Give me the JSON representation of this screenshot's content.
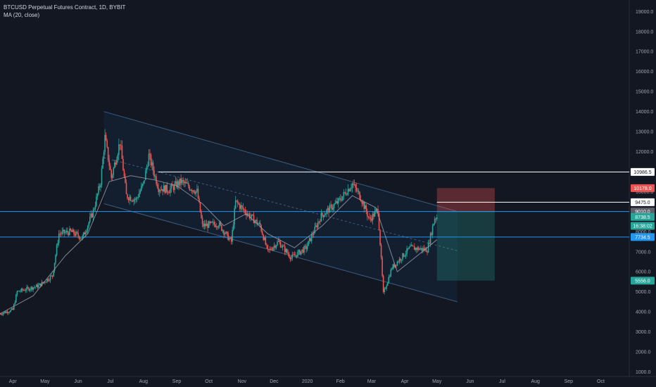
{
  "legend": {
    "symbol_line": "BTCUSD Perpetual Futures Contract, 1D, BYBIT",
    "indicator_line": "MA (20, close)"
  },
  "chart_data": {
    "type": "candlestick",
    "y_axis_ticks": [
      1000,
      2000,
      3000,
      4000,
      5000,
      6000,
      7000,
      8000,
      9000,
      10000,
      11000,
      12000,
      13000,
      14000,
      15000,
      16000,
      17000,
      18000,
      19000
    ],
    "y_tick_labels": [
      "1000.0",
      "2000.0",
      "3000.0",
      "4000.0",
      "5000.0",
      "6000.0",
      "7000.0",
      "8000.0",
      "9000.0",
      "10000.0",
      "11000.0",
      "12000.0",
      "13000.0",
      "14000.0",
      "15000.0",
      "16000.0",
      "17000.0",
      "18000.0",
      "19000.0"
    ],
    "x_axis_labels": [
      "Apr",
      "May",
      "Jun",
      "Jul",
      "Aug",
      "Sep",
      "Oct",
      "Nov",
      "Dec",
      "2020",
      "Feb",
      "Mar",
      "Apr",
      "May",
      "Jun",
      "Jul",
      "Aug",
      "Sep",
      "Oct"
    ],
    "x_axis_months": [
      "2019-04",
      "2019-05",
      "2019-06",
      "2019-07",
      "2019-08",
      "2019-09",
      "2019-10",
      "2019-11",
      "2019-12",
      "2020-01",
      "2020-02",
      "2020-03",
      "2020-04",
      "2020-05",
      "2020-06",
      "2020-07",
      "2020-08",
      "2020-09",
      "2020-10"
    ],
    "price_path": [
      {
        "date": "2019-03-20",
        "price": 3900
      },
      {
        "date": "2019-04-01",
        "price": 4100
      },
      {
        "date": "2019-04-05",
        "price": 5000
      },
      {
        "date": "2019-04-25",
        "price": 5300
      },
      {
        "date": "2019-05-08",
        "price": 5800
      },
      {
        "date": "2019-05-14",
        "price": 7900
      },
      {
        "date": "2019-05-25",
        "price": 8000
      },
      {
        "date": "2019-06-05",
        "price": 7700
      },
      {
        "date": "2019-06-15",
        "price": 9000
      },
      {
        "date": "2019-06-22",
        "price": 10500
      },
      {
        "date": "2019-06-26",
        "price": 12700
      },
      {
        "date": "2019-07-02",
        "price": 10700
      },
      {
        "date": "2019-07-10",
        "price": 12500
      },
      {
        "date": "2019-07-16",
        "price": 9800
      },
      {
        "date": "2019-07-25",
        "price": 9600
      },
      {
        "date": "2019-08-01",
        "price": 10400
      },
      {
        "date": "2019-08-06",
        "price": 11800
      },
      {
        "date": "2019-08-15",
        "price": 10200
      },
      {
        "date": "2019-08-25",
        "price": 10100
      },
      {
        "date": "2019-09-05",
        "price": 10500
      },
      {
        "date": "2019-09-20",
        "price": 10000
      },
      {
        "date": "2019-09-25",
        "price": 8300
      },
      {
        "date": "2019-10-10",
        "price": 8400
      },
      {
        "date": "2019-10-22",
        "price": 7500
      },
      {
        "date": "2019-10-26",
        "price": 9500
      },
      {
        "date": "2019-11-08",
        "price": 8800
      },
      {
        "date": "2019-11-18",
        "price": 8300
      },
      {
        "date": "2019-11-25",
        "price": 7000
      },
      {
        "date": "2019-12-05",
        "price": 7500
      },
      {
        "date": "2019-12-17",
        "price": 6700
      },
      {
        "date": "2019-12-31",
        "price": 7200
      },
      {
        "date": "2020-01-14",
        "price": 8800
      },
      {
        "date": "2020-01-30",
        "price": 9500
      },
      {
        "date": "2020-02-12",
        "price": 10400
      },
      {
        "date": "2020-02-20",
        "price": 9700
      },
      {
        "date": "2020-02-28",
        "price": 8600
      },
      {
        "date": "2020-03-07",
        "price": 9100
      },
      {
        "date": "2020-03-12",
        "price": 4900
      },
      {
        "date": "2020-03-20",
        "price": 6200
      },
      {
        "date": "2020-04-06",
        "price": 7200
      },
      {
        "date": "2020-04-22",
        "price": 7100
      },
      {
        "date": "2020-04-29",
        "price": 8700
      },
      {
        "date": "2020-05-01",
        "price": 8738.5
      }
    ],
    "moving_average": {
      "name": "MA (20, close)",
      "path": [
        {
          "date": "2019-03-20",
          "price": 3900
        },
        {
          "date": "2019-04-20",
          "price": 4800
        },
        {
          "date": "2019-05-20",
          "price": 6800
        },
        {
          "date": "2019-06-10",
          "price": 7900
        },
        {
          "date": "2019-06-30",
          "price": 10500
        },
        {
          "date": "2019-07-20",
          "price": 10800
        },
        {
          "date": "2019-08-10",
          "price": 10600
        },
        {
          "date": "2019-09-01",
          "price": 10300
        },
        {
          "date": "2019-09-25",
          "price": 9400
        },
        {
          "date": "2019-10-15",
          "price": 8300
        },
        {
          "date": "2019-11-05",
          "price": 8900
        },
        {
          "date": "2019-11-25",
          "price": 7900
        },
        {
          "date": "2019-12-20",
          "price": 7200
        },
        {
          "date": "2020-01-15",
          "price": 8300
        },
        {
          "date": "2020-02-12",
          "price": 9800
        },
        {
          "date": "2020-03-05",
          "price": 9200
        },
        {
          "date": "2020-03-25",
          "price": 6000
        },
        {
          "date": "2020-04-15",
          "price": 6900
        },
        {
          "date": "2020-05-01",
          "price": 7600
        }
      ]
    },
    "channel": {
      "upper": [
        {
          "date": "2019-06-25",
          "price": 14000
        },
        {
          "date": "2020-05-01",
          "price": 9300
        }
      ],
      "lower": [
        {
          "date": "2019-06-25",
          "price": 9400
        },
        {
          "date": "2020-05-20",
          "price": 4500
        }
      ],
      "mid_dashed": [
        {
          "date": "2019-06-25",
          "price": 11700
        },
        {
          "date": "2020-05-20",
          "price": 7050
        }
      ]
    },
    "horizontal_lines": [
      {
        "price": 10986.5,
        "color": "#ffffff",
        "start": "2019-08-15"
      },
      {
        "price": 9475.0,
        "color": "#ffffff",
        "start": "2020-05-01"
      },
      {
        "price": 9010.0,
        "color": "#2196f3",
        "start": "2019-03-20"
      },
      {
        "price": 7734.5,
        "color": "#2196f3",
        "start": "2019-03-20"
      }
    ],
    "position_tool": {
      "entry": 9010.0,
      "stop": 10178.0,
      "target": 5556.0,
      "start": "2020-05-01",
      "end": "2020-06-24"
    },
    "price_labels": [
      {
        "text": "10986.5",
        "price": 10986.5,
        "bg": "#ffffff",
        "fg": "#131722"
      },
      {
        "text": "10178.0",
        "price": 10178.0,
        "bg": "#ef5350",
        "fg": "#ffffff"
      },
      {
        "text": "9475.0",
        "price": 9475.0,
        "bg": "#ffffff",
        "fg": "#131722"
      },
      {
        "text": "9010.0",
        "price": 9010.0,
        "bg": "#5d606b",
        "fg": "#ffffff"
      },
      {
        "text": "8738.5",
        "price": 8738.5,
        "bg": "#26a69a",
        "fg": "#ffffff"
      },
      {
        "text": "16:38:02",
        "price": 8290,
        "bg": "#26a69a",
        "fg": "#ffffff"
      },
      {
        "text": "7734.5",
        "price": 7734.5,
        "bg": "#2196f3",
        "fg": "#ffffff"
      },
      {
        "text": "5556.0",
        "price": 5556.0,
        "bg": "#26a69a",
        "fg": "#ffffff"
      }
    ],
    "colors": {
      "background": "#131722",
      "up": "#26a69a",
      "down": "#ef5350",
      "channel": "#3b5c7e",
      "moving_average": "#9aa0ae",
      "axis_text": "#a3a6af"
    }
  }
}
